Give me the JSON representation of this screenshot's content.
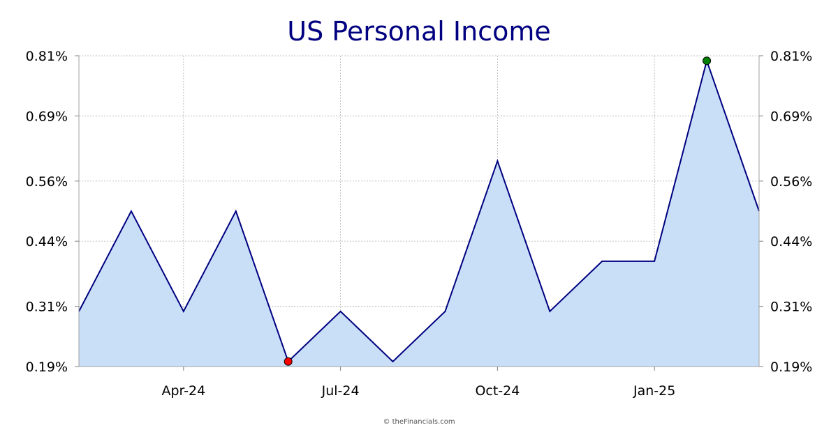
{
  "chart_data": {
    "type": "area",
    "title": "US Personal Income",
    "xlabel": "",
    "ylabel": "",
    "x": [
      "2024-02",
      "2024-03",
      "2024-04",
      "2024-05",
      "2024-06",
      "2024-07",
      "2024-08",
      "2024-09",
      "2024-10",
      "2024-11",
      "2024-12",
      "2025-01",
      "2025-02",
      "2025-03"
    ],
    "series": [
      {
        "values": [
          0.3,
          0.5,
          0.3,
          0.5,
          0.2,
          0.3,
          0.2,
          0.3,
          0.6,
          0.3,
          0.4,
          0.4,
          0.8,
          0.5
        ]
      }
    ],
    "x_ticks": [
      {
        "x": "2024-04",
        "label": "Apr-24"
      },
      {
        "x": "2024-07",
        "label": "Jul-24"
      },
      {
        "x": "2024-10",
        "label": "Oct-24"
      },
      {
        "x": "2025-01",
        "label": "Jan-25"
      }
    ],
    "y_ticks": [
      0.19,
      0.31,
      0.44,
      0.56,
      0.69,
      0.81
    ],
    "y_tick_labels": [
      "0.19%",
      "0.31%",
      "0.44%",
      "0.56%",
      "0.69%",
      "0.81%"
    ],
    "ylim": [
      0.19,
      0.81
    ],
    "y_axis_both_sides": true,
    "grid": true,
    "min_point": {
      "x": "2024-06",
      "value": 0.2,
      "color": "#ff0000"
    },
    "max_point": {
      "x": "2025-02",
      "value": 0.8,
      "color": "#008000"
    },
    "colors": {
      "line": "#000080",
      "fill": "#c9dff7",
      "grid": "#b0b0b0",
      "title": "#000080"
    }
  },
  "credit": "© theFinancials.com"
}
